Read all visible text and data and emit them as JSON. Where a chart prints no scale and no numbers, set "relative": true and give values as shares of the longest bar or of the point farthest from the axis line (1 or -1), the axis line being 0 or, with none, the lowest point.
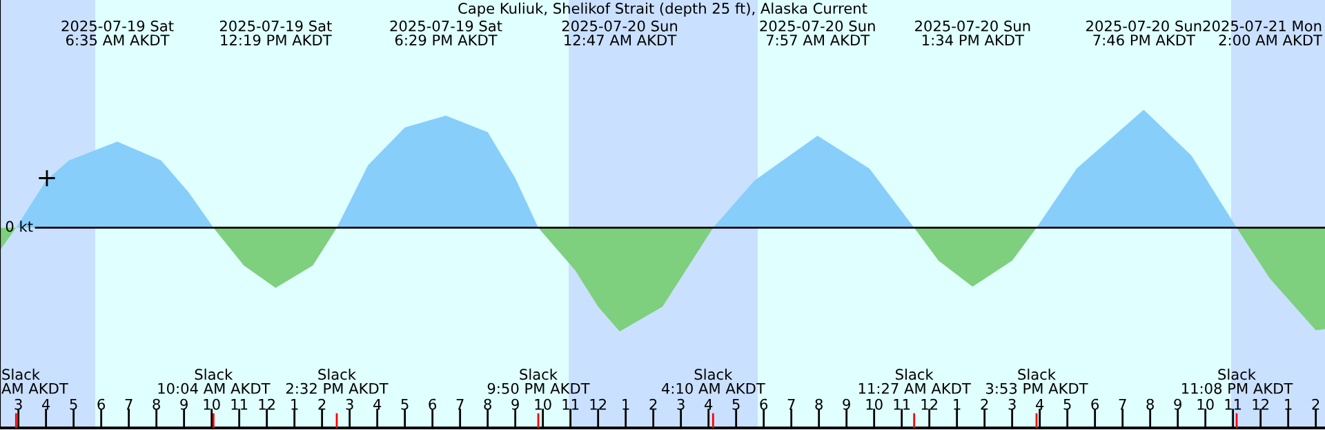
{
  "chart_data": {
    "type": "area",
    "title": "Cape Kuliuk, Shelikof Strait (depth 25 ft), Alaska Current",
    "relative": true,
    "xlim": [
      "2025-07-19T02:20",
      "2025-07-21T02:20"
    ],
    "xticks": [
      {
        "value": "2025-07-19T03:00",
        "label": "3"
      },
      {
        "value": "2025-07-19T04:00",
        "label": "4"
      },
      {
        "value": "2025-07-19T05:00",
        "label": "5"
      },
      {
        "value": "2025-07-19T06:00",
        "label": "6"
      },
      {
        "value": "2025-07-19T07:00",
        "label": "7"
      },
      {
        "value": "2025-07-19T08:00",
        "label": "8"
      },
      {
        "value": "2025-07-19T09:00",
        "label": "9"
      },
      {
        "value": "2025-07-19T10:00",
        "label": "10"
      },
      {
        "value": "2025-07-19T11:00",
        "label": "11"
      },
      {
        "value": "2025-07-19T12:00",
        "label": "12"
      },
      {
        "value": "2025-07-19T13:00",
        "label": "1"
      },
      {
        "value": "2025-07-19T14:00",
        "label": "2"
      },
      {
        "value": "2025-07-19T15:00",
        "label": "3"
      },
      {
        "value": "2025-07-19T16:00",
        "label": "4"
      },
      {
        "value": "2025-07-19T17:00",
        "label": "5"
      },
      {
        "value": "2025-07-19T18:00",
        "label": "6"
      },
      {
        "value": "2025-07-19T19:00",
        "label": "7"
      },
      {
        "value": "2025-07-19T20:00",
        "label": "8"
      },
      {
        "value": "2025-07-19T21:00",
        "label": "9"
      },
      {
        "value": "2025-07-19T22:00",
        "label": "10"
      },
      {
        "value": "2025-07-19T23:00",
        "label": "11"
      },
      {
        "value": "2025-07-20T00:00",
        "label": "12"
      },
      {
        "value": "2025-07-20T01:00",
        "label": "1"
      },
      {
        "value": "2025-07-20T02:00",
        "label": "2"
      },
      {
        "value": "2025-07-20T03:00",
        "label": "3"
      },
      {
        "value": "2025-07-20T04:00",
        "label": "4"
      },
      {
        "value": "2025-07-20T05:00",
        "label": "5"
      },
      {
        "value": "2025-07-20T06:00",
        "label": "6"
      },
      {
        "value": "2025-07-20T07:00",
        "label": "7"
      },
      {
        "value": "2025-07-20T08:00",
        "label": "8"
      },
      {
        "value": "2025-07-20T09:00",
        "label": "9"
      },
      {
        "value": "2025-07-20T10:00",
        "label": "10"
      },
      {
        "value": "2025-07-20T11:00",
        "label": "11"
      },
      {
        "value": "2025-07-20T12:00",
        "label": "12"
      },
      {
        "value": "2025-07-20T13:00",
        "label": "1"
      },
      {
        "value": "2025-07-20T14:00",
        "label": "2"
      },
      {
        "value": "2025-07-20T15:00",
        "label": "3"
      },
      {
        "value": "2025-07-20T16:00",
        "label": "4"
      },
      {
        "value": "2025-07-20T17:00",
        "label": "5"
      },
      {
        "value": "2025-07-20T18:00",
        "label": "6"
      },
      {
        "value": "2025-07-20T19:00",
        "label": "7"
      },
      {
        "value": "2025-07-20T20:00",
        "label": "8"
      },
      {
        "value": "2025-07-20T21:00",
        "label": "9"
      },
      {
        "value": "2025-07-20T22:00",
        "label": "10"
      },
      {
        "value": "2025-07-20T23:00",
        "label": "11"
      },
      {
        "value": "2025-07-21T00:00",
        "label": "12"
      },
      {
        "value": "2025-07-21T01:00",
        "label": "1"
      },
      {
        "value": "2025-07-21T02:00",
        "label": "2"
      }
    ],
    "x": [
      "2025-07-19T02:20",
      "2025-07-19T02:55",
      "2025-07-19T04:00",
      "2025-07-19T04:50",
      "2025-07-19T06:35",
      "2025-07-19T08:10",
      "2025-07-19T09:10",
      "2025-07-19T10:04",
      "2025-07-19T11:10",
      "2025-07-19T12:19",
      "2025-07-19T13:40",
      "2025-07-19T14:32",
      "2025-07-19T15:40",
      "2025-07-19T17:00",
      "2025-07-19T18:29",
      "2025-07-19T20:00",
      "2025-07-19T21:00",
      "2025-07-19T21:50",
      "2025-07-19T23:10",
      "2025-07-20T00:00",
      "2025-07-20T00:47",
      "2025-07-20T02:20",
      "2025-07-20T04:10",
      "2025-07-20T05:40",
      "2025-07-20T07:57",
      "2025-07-20T09:50",
      "2025-07-20T11:27",
      "2025-07-20T12:20",
      "2025-07-20T13:34",
      "2025-07-20T15:00",
      "2025-07-20T15:53",
      "2025-07-20T17:20",
      "2025-07-20T19:46",
      "2025-07-20T21:30",
      "2025-07-20T23:08",
      "2025-07-21T00:20",
      "2025-07-21T02:00",
      "2025-07-21T02:20"
    ],
    "series": [
      {
        "color": "#87cefa",
        "values": [
          null,
          0,
          0.4,
          0.57,
          0.73,
          0.57,
          0.3,
          0,
          null,
          null,
          null,
          0,
          0.53,
          0.85,
          0.95,
          0.81,
          0.42,
          0,
          null,
          null,
          null,
          null,
          0,
          0.4,
          0.78,
          0.5,
          0,
          null,
          null,
          null,
          0,
          0.5,
          1.0,
          0.61,
          0,
          null,
          null,
          null
        ]
      },
      {
        "color": "#7ecf7e",
        "values": [
          -0.19,
          0,
          null,
          null,
          null,
          null,
          null,
          0,
          -0.32,
          -0.51,
          -0.32,
          0,
          null,
          null,
          null,
          null,
          null,
          0,
          -0.36,
          -0.67,
          -0.88,
          -0.67,
          0,
          null,
          null,
          null,
          0,
          -0.28,
          -0.5,
          -0.28,
          0,
          null,
          null,
          null,
          0,
          -0.43,
          -0.87,
          -0.86
        ]
      },
      {
        "type": "scatter",
        "marker": "cross",
        "color": "#000000",
        "x": [
          "2025-07-19T04:02"
        ],
        "values": [
          0.42
        ]
      }
    ],
    "ref_lines": [
      {
        "axis": "y",
        "value": 0,
        "label": "0 kt",
        "color": "#000000"
      }
    ],
    "bands": [
      {
        "axis": "x",
        "from": "2025-07-19T02:20",
        "to": "2025-07-19T05:47",
        "color": "#cae0ff"
      },
      {
        "axis": "x",
        "from": "2025-07-19T05:47",
        "to": "2025-07-19T22:56",
        "color": "#e0ffff"
      },
      {
        "axis": "x",
        "from": "2025-07-19T22:56",
        "to": "2025-07-20T05:47",
        "color": "#cae0ff"
      },
      {
        "axis": "x",
        "from": "2025-07-20T05:47",
        "to": "2025-07-20T22:56",
        "color": "#e0ffff"
      },
      {
        "axis": "x",
        "from": "2025-07-20T22:56",
        "to": "2025-07-21T02:20",
        "color": "#cae0ff"
      }
    ],
    "annotations": [
      "2025-07-19 Sat\n6:35 AM AKDT",
      "2025-07-19 Sat\n12:19 PM AKDT",
      "2025-07-19 Sat\n6:29 PM AKDT",
      "2025-07-20 Sun\n12:47 AM AKDT",
      "2025-07-20 Sun\n7:57 AM AKDT",
      "2025-07-20 Sun\n1:34 PM AKDT",
      "2025-07-20 Sun\n7:46 PM AKDT",
      "2025-07-21 Mon\n2:00 AM AKDT",
      "Slack\nAM AKDT",
      "Slack\n10:04 AM AKDT",
      "Slack\n2:32 PM AKDT",
      "Slack\n9:50 PM AKDT",
      "Slack\n4:10 AM AKDT",
      "Slack\n11:27 AM AKDT",
      "Slack\n3:53 PM AKDT",
      "Slack\n11:08 PM AKDT"
    ]
  }
}
